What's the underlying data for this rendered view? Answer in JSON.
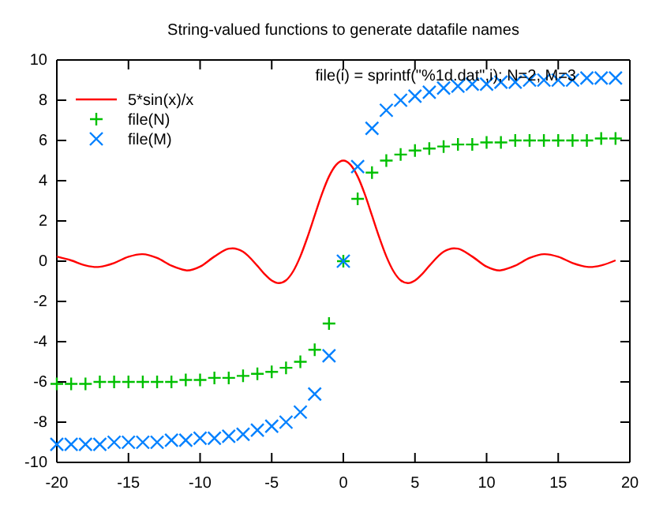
{
  "chart_data": {
    "type": "line",
    "title": "String-valued functions to generate datafile names",
    "annotations": [
      "file(i) = sprintf(\"%1d.dat\",i); N=2, M=3"
    ],
    "xlim": [
      -20,
      20
    ],
    "xticks": [
      -20,
      -15,
      -10,
      -5,
      0,
      5,
      10,
      15,
      20
    ],
    "ylim": [
      -10,
      10
    ],
    "yticks": [
      -10,
      -8,
      -6,
      -4,
      -2,
      0,
      2,
      4,
      6,
      8,
      10
    ],
    "grid": false,
    "legend": "top left",
    "series": [
      {
        "name": "5*sin(x)/x",
        "color": "#ff0000",
        "marker": "none",
        "line_style": "solid",
        "x": [
          -20,
          -19,
          -18,
          -17.221,
          -17,
          -16,
          -15,
          -14.066,
          -14,
          -13,
          -12,
          -11,
          -10.904,
          -10,
          -9,
          -8,
          -7.725,
          -7,
          -6,
          -5.5,
          -5,
          -4.5,
          -4,
          -3.5,
          -3,
          -2.5,
          -2,
          -1.5,
          -1,
          -0.5,
          0,
          0.5,
          1,
          1.5,
          2,
          2.5,
          3,
          3.5,
          4,
          4.5,
          5,
          5.5,
          6,
          7,
          7.725,
          8,
          9,
          10,
          10.904,
          11,
          12,
          13,
          14,
          14.066,
          15,
          16,
          17,
          17.221,
          18,
          19
        ],
        "values": [
          0.23,
          0.04,
          -0.21,
          -0.29,
          -0.28,
          -0.09,
          0.22,
          0.35,
          0.35,
          0.16,
          -0.22,
          -0.45,
          -0.46,
          -0.27,
          0.23,
          0.62,
          0.64,
          0.47,
          -0.23,
          -0.64,
          -0.96,
          -1.09,
          -0.95,
          -0.5,
          0.24,
          1.2,
          2.27,
          3.33,
          4.21,
          4.79,
          5,
          4.79,
          4.21,
          3.33,
          2.27,
          1.2,
          0.24,
          -0.5,
          -0.95,
          -1.09,
          -0.96,
          -0.64,
          -0.23,
          0.47,
          0.64,
          0.62,
          0.23,
          -0.27,
          -0.46,
          -0.45,
          -0.22,
          0.16,
          0.35,
          0.35,
          0.22,
          -0.09,
          -0.28,
          -0.29,
          -0.21,
          0.04
        ]
      },
      {
        "name": "file(N)",
        "type": "scatter",
        "color": "#00c000",
        "marker": "cross",
        "x": [
          -20,
          -19,
          -18,
          -17,
          -16,
          -15,
          -14,
          -13,
          -12,
          -11,
          -10,
          -9,
          -8,
          -7,
          -6,
          -5,
          -4,
          -3,
          -2,
          -1,
          0,
          1,
          2,
          3,
          4,
          5,
          6,
          7,
          8,
          9,
          10,
          11,
          12,
          13,
          14,
          15,
          16,
          17,
          18,
          19
        ],
        "values": [
          -6.1,
          -6.1,
          -6.1,
          -6.0,
          -6.0,
          -6.0,
          -6.0,
          -6.0,
          -6.0,
          -5.9,
          -5.9,
          -5.8,
          -5.8,
          -5.7,
          -5.6,
          -5.5,
          -5.3,
          -5.0,
          -4.4,
          -3.1,
          0,
          3.1,
          4.4,
          5.0,
          5.3,
          5.5,
          5.6,
          5.7,
          5.8,
          5.8,
          5.9,
          5.9,
          6.0,
          6.0,
          6.0,
          6.0,
          6.0,
          6.0,
          6.1,
          6.1
        ]
      },
      {
        "name": "file(M)",
        "type": "scatter",
        "color": "#0080ff",
        "marker": "cross",
        "x": [
          -20,
          -19,
          -18,
          -17,
          -16,
          -15,
          -14,
          -13,
          -12,
          -11,
          -10,
          -9,
          -8,
          -7,
          -6,
          -5,
          -4,
          -3,
          -2,
          -1,
          0,
          1,
          2,
          3,
          4,
          5,
          6,
          7,
          8,
          9,
          10,
          11,
          12,
          13,
          14,
          15,
          16,
          17,
          18,
          19
        ],
        "values": [
          -9.1,
          -9.1,
          -9.1,
          -9.1,
          -9.0,
          -9.0,
          -9.0,
          -9.0,
          -8.9,
          -8.9,
          -8.8,
          -8.8,
          -8.7,
          -8.6,
          -8.4,
          -8.2,
          -8.0,
          -7.5,
          -6.6,
          -4.7,
          0,
          4.7,
          6.6,
          7.5,
          8.0,
          8.2,
          8.4,
          8.6,
          8.7,
          8.8,
          8.8,
          8.9,
          8.9,
          9.0,
          9.0,
          9.0,
          9.0,
          9.1,
          9.1,
          9.1
        ]
      }
    ]
  }
}
